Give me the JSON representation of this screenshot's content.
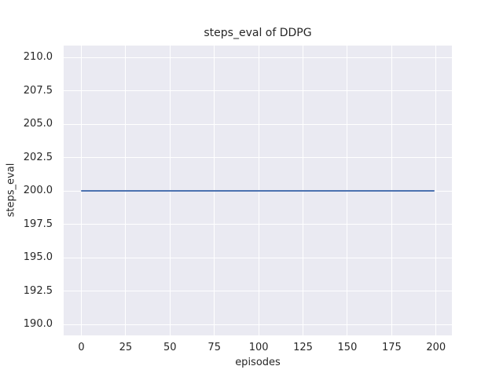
{
  "chart_data": {
    "type": "line",
    "title": "steps_eval of DDPG",
    "xlabel": "episodes",
    "ylabel": "steps_eval",
    "xlim": [
      -9.95,
      208.95
    ],
    "ylim": [
      189.2,
      210.9
    ],
    "x_ticks": [
      0,
      25,
      50,
      75,
      100,
      125,
      150,
      175,
      200
    ],
    "x_tick_labels": [
      "0",
      "25",
      "50",
      "75",
      "100",
      "125",
      "150",
      "175",
      "200"
    ],
    "y_ticks": [
      190.0,
      192.5,
      195.0,
      197.5,
      200.0,
      202.5,
      205.0,
      207.5,
      210.0
    ],
    "y_tick_labels": [
      "190.0",
      "192.5",
      "195.0",
      "197.5",
      "200.0",
      "202.5",
      "205.0",
      "207.5",
      "210.0"
    ],
    "grid": true,
    "legend_position": "none",
    "series": [
      {
        "name": "DDPG",
        "x": [
          0,
          199
        ],
        "y": [
          200.0,
          200.0
        ]
      }
    ],
    "colors": {
      "axes_background": "#eaeaf2",
      "grid_color": "#ffffff",
      "line_color": "#4c72b0",
      "text_color": "#262626",
      "figure_background": "#ffffff"
    }
  }
}
